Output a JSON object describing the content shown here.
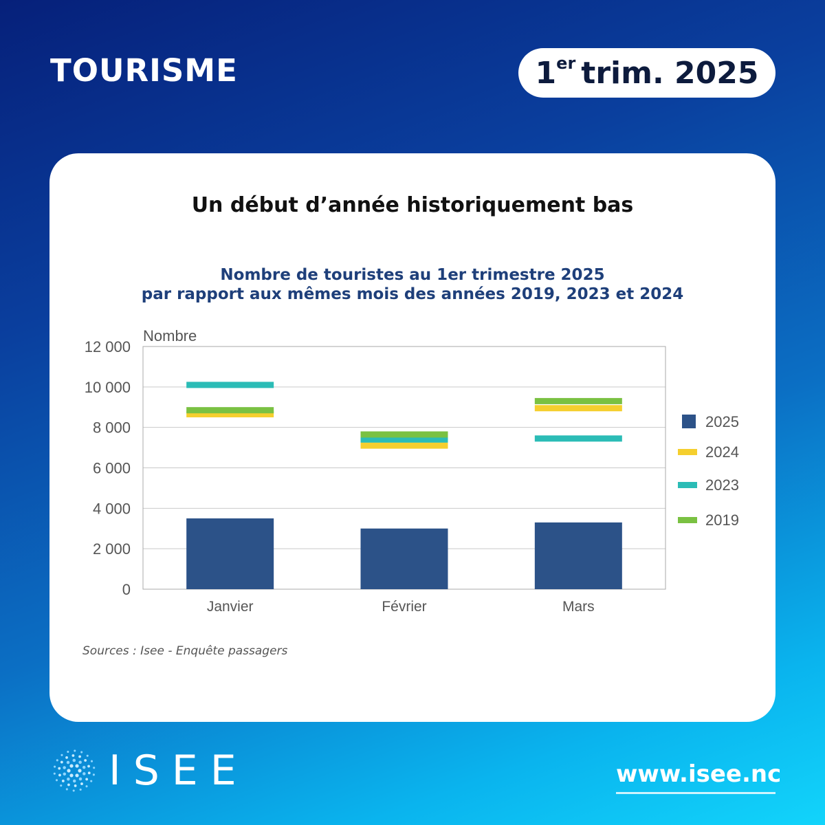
{
  "header": {
    "topic": "TOURISME",
    "period_number": "1",
    "period_suffix": "er",
    "period_text": "trim. 2025"
  },
  "card": {
    "headline": "Un début d’année historiquement bas",
    "source": "Sources : Isee - Enquête passagers"
  },
  "chart_data": {
    "type": "bar",
    "title_lines": [
      "Nombre de touristes au 1er trimestre 2025",
      "par rapport aux mêmes mois des années 2019, 2023 et 2024"
    ],
    "ylabel": "Nombre",
    "ylim": [
      0,
      12000
    ],
    "yticks": [
      0,
      2000,
      4000,
      6000,
      8000,
      10000,
      12000
    ],
    "ytick_labels": [
      "0",
      "2 000",
      "4 000",
      "6 000",
      "8 000",
      "10 000",
      "12 000"
    ],
    "categories": [
      "Janvier",
      "Février",
      "Mars"
    ],
    "grid": true,
    "legend_position": "right",
    "series": [
      {
        "name": "2025",
        "values": [
          3500,
          3000,
          3300
        ],
        "color": "#2c5288",
        "style": "bar"
      },
      {
        "name": "2024",
        "values": [
          8650,
          7100,
          8950
        ],
        "color": "#f5cf2e",
        "style": "marker"
      },
      {
        "name": "2023",
        "values": [
          10100,
          7400,
          7450
        ],
        "color": "#2bbcb6",
        "style": "marker"
      },
      {
        "name": "2019",
        "values": [
          8850,
          7650,
          9300
        ],
        "color": "#7ac142",
        "style": "marker"
      }
    ]
  },
  "footer": {
    "brand": "ISEE",
    "website": "www.isee.nc"
  },
  "colors": {
    "card_background": "#ffffff",
    "title_blue": "#1e3f7a"
  }
}
